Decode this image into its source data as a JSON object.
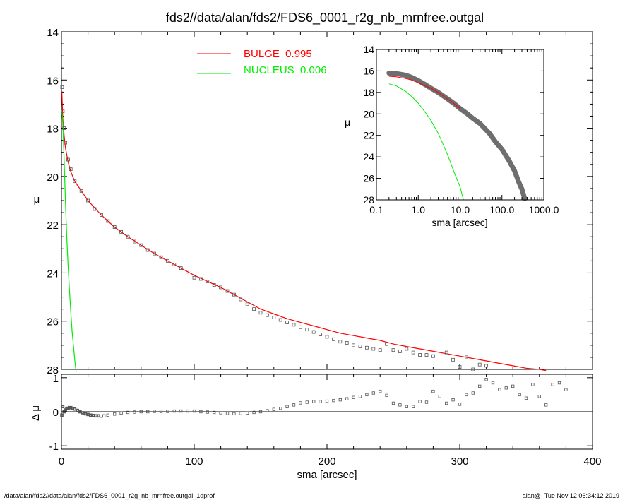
{
  "title": "fds2//data/alan/fds2/FDS6_0001_r2g_nb_mrnfree.outgal",
  "footer_left": "/data/alan/fds2//data/alan/fds2/FDS6_0001_r2g_nb_mrnfree.outgal_1dprof",
  "footer_right": "alan@  Tue Nov 12 06:34:12 2019",
  "colors": {
    "bulge": "#ff0000",
    "nucleus": "#00ee00",
    "data": "#555555",
    "axis": "#000000"
  },
  "chart_data": [
    {
      "id": "main",
      "type": "scatter",
      "xlabel": "",
      "ylabel": "μ",
      "xlim": [
        0,
        400
      ],
      "ylim": [
        28,
        14
      ],
      "yticks": [
        14,
        16,
        18,
        20,
        22,
        24,
        26,
        28
      ],
      "legend": {
        "placement": "top-center",
        "entries": [
          {
            "label": "BULGE  0.995",
            "color": "#ff0000"
          },
          {
            "label": "NUCLEUS  0.006",
            "color": "#00ee00"
          }
        ]
      },
      "series": [
        {
          "name": "BULGE",
          "style": "line",
          "color": "#ff0000",
          "x": [
            0.3,
            1,
            2,
            3,
            5,
            7,
            10,
            15,
            20,
            30,
            40,
            50,
            60,
            70,
            80,
            90,
            100,
            110,
            120,
            130,
            140,
            150,
            160,
            170,
            180,
            190,
            200,
            210,
            220,
            230,
            240,
            250,
            260,
            270,
            280,
            290,
            300,
            310,
            320,
            330,
            340,
            350,
            360,
            365
          ],
          "y": [
            16.5,
            17.6,
            18.3,
            18.8,
            19.4,
            19.8,
            20.2,
            20.6,
            21.0,
            21.6,
            22.1,
            22.5,
            22.85,
            23.2,
            23.5,
            23.8,
            24.1,
            24.35,
            24.6,
            24.9,
            25.2,
            25.5,
            25.7,
            25.9,
            26.05,
            26.2,
            26.35,
            26.5,
            26.6,
            26.7,
            26.8,
            26.95,
            27.05,
            27.15,
            27.25,
            27.35,
            27.45,
            27.55,
            27.65,
            27.75,
            27.85,
            27.95,
            28.0,
            28.05
          ]
        },
        {
          "name": "NUCLEUS",
          "style": "line",
          "color": "#00ee00",
          "x": [
            0.3,
            1,
            2,
            3,
            4,
            5,
            6,
            7,
            8,
            9,
            10,
            11
          ],
          "y": [
            17.3,
            17.8,
            19.3,
            21.0,
            22.5,
            23.7,
            24.7,
            25.6,
            26.4,
            27.0,
            27.6,
            28.1
          ]
        },
        {
          "name": "data",
          "style": "open-square",
          "color": "#555555",
          "x": [
            0.5,
            1,
            2,
            3,
            5,
            7,
            10,
            15,
            20,
            25,
            30,
            35,
            40,
            45,
            50,
            55,
            60,
            65,
            70,
            75,
            80,
            85,
            90,
            95,
            100,
            105,
            110,
            115,
            120,
            125,
            130,
            135,
            140,
            145,
            150,
            155,
            160,
            165,
            170,
            175,
            180,
            185,
            190,
            195,
            200,
            205,
            210,
            215,
            220,
            225,
            230,
            235,
            240,
            245,
            250,
            255,
            260,
            265,
            270,
            275,
            280,
            290,
            295,
            300,
            305,
            310,
            315,
            320
          ],
          "y": [
            16.3,
            17.3,
            18.0,
            18.6,
            19.3,
            19.7,
            20.2,
            20.6,
            21.0,
            21.35,
            21.6,
            21.85,
            22.1,
            22.3,
            22.5,
            22.7,
            22.85,
            23.05,
            23.2,
            23.35,
            23.5,
            23.65,
            23.8,
            23.95,
            24.2,
            24.25,
            24.35,
            24.5,
            24.6,
            24.75,
            24.9,
            25.1,
            25.3,
            25.5,
            25.65,
            25.75,
            25.85,
            25.95,
            26.05,
            26.15,
            26.25,
            26.35,
            26.45,
            26.55,
            26.65,
            26.75,
            26.85,
            26.9,
            27.0,
            27.05,
            27.1,
            27.15,
            27.2,
            26.95,
            27.2,
            27.25,
            27.15,
            27.3,
            27.4,
            27.4,
            27.45,
            27.3,
            27.6,
            27.9,
            27.5,
            28.0,
            27.8,
            27.85
          ]
        }
      ]
    },
    {
      "id": "inset",
      "type": "line",
      "xlabel": "sma [arcsec]",
      "ylabel": "μ",
      "xscale": "log",
      "xlim": [
        0.1,
        1000
      ],
      "xtick_labels": [
        "0.1",
        "1.0",
        "10.0",
        "100.0",
        "1000.0"
      ],
      "ylim": [
        28,
        14
      ],
      "yticks": [
        14,
        16,
        18,
        20,
        22,
        24,
        26,
        28
      ],
      "series": [
        {
          "name": "data",
          "color": "#555555",
          "x": [
            0.2,
            0.3,
            0.5,
            0.7,
            1.0,
            1.5,
            2,
            3,
            5,
            7,
            10,
            15,
            20,
            30,
            50,
            70,
            100,
            150,
            200,
            250,
            300,
            350
          ],
          "y": [
            16.2,
            16.25,
            16.4,
            16.6,
            16.9,
            17.3,
            17.6,
            18.0,
            18.6,
            19.0,
            19.5,
            20.0,
            20.4,
            20.9,
            21.8,
            22.6,
            23.3,
            24.4,
            25.3,
            26.3,
            27.0,
            27.9
          ]
        },
        {
          "name": "BULGE",
          "color": "#ff0000",
          "x": [
            0.2,
            0.3,
            0.5,
            0.7,
            1.0,
            1.5,
            2,
            3,
            5,
            7,
            10
          ],
          "y": [
            16.5,
            16.55,
            16.7,
            16.85,
            17.1,
            17.4,
            17.6,
            18.0,
            18.6,
            19.0,
            19.5
          ]
        },
        {
          "name": "NUCLEUS",
          "color": "#00ee00",
          "x": [
            0.2,
            0.3,
            0.5,
            0.7,
            1.0,
            1.5,
            2,
            3,
            4,
            5,
            6,
            7,
            8,
            10,
            12
          ],
          "y": [
            17.2,
            17.4,
            17.9,
            18.4,
            19.0,
            19.9,
            20.6,
            21.8,
            22.9,
            23.8,
            24.6,
            25.3,
            25.9,
            26.8,
            28.0
          ]
        }
      ]
    },
    {
      "id": "residual",
      "type": "scatter",
      "xlabel": "sma [arcsec]",
      "ylabel": "Δ μ",
      "xlim": [
        0,
        400
      ],
      "xticks": [
        0,
        100,
        200,
        300,
        400
      ],
      "ylim": [
        -1.1,
        1.1
      ],
      "yticks": [
        -1,
        0,
        1
      ],
      "zero_line": true,
      "series": [
        {
          "name": "residual",
          "color": "#555555",
          "x": [
            0.3,
            1,
            2,
            3,
            4,
            5,
            6,
            7,
            8,
            10,
            12,
            14,
            16,
            18,
            20,
            22,
            24,
            26,
            28,
            30,
            32,
            35,
            40,
            45,
            50,
            55,
            60,
            65,
            70,
            75,
            80,
            85,
            90,
            95,
            100,
            105,
            110,
            115,
            120,
            125,
            130,
            135,
            140,
            145,
            150,
            155,
            160,
            165,
            170,
            175,
            180,
            185,
            190,
            195,
            200,
            205,
            210,
            215,
            220,
            225,
            230,
            235,
            240,
            245,
            250,
            255,
            260,
            265,
            270,
            275,
            280,
            285,
            290,
            295,
            300,
            305,
            310,
            315,
            320,
            325,
            330,
            335,
            340,
            345,
            350,
            355,
            360,
            365,
            370,
            375,
            380
          ],
          "y": [
            -0.1,
            0.15,
            0.0,
            0.05,
            0.1,
            0.1,
            0.12,
            0.12,
            0.1,
            0.08,
            0.04,
            0.0,
            -0.03,
            -0.06,
            -0.08,
            -0.1,
            -0.11,
            -0.12,
            -0.12,
            -0.13,
            -0.12,
            -0.1,
            -0.07,
            -0.04,
            -0.02,
            -0.01,
            0.0,
            0.0,
            0.01,
            0.01,
            0.01,
            0.02,
            0.02,
            0.02,
            0.02,
            0.0,
            -0.01,
            -0.02,
            -0.03,
            -0.05,
            -0.06,
            -0.05,
            -0.04,
            -0.02,
            0.0,
            0.03,
            0.07,
            0.1,
            0.15,
            0.2,
            0.26,
            0.28,
            0.3,
            0.3,
            0.31,
            0.33,
            0.35,
            0.38,
            0.42,
            0.45,
            0.5,
            0.55,
            0.6,
            0.48,
            0.25,
            0.2,
            0.15,
            0.15,
            0.3,
            0.28,
            0.6,
            0.45,
            0.25,
            0.35,
            0.22,
            0.5,
            0.55,
            0.75,
            0.95,
            0.85,
            0.65,
            0.7,
            0.75,
            0.5,
            0.4,
            0.8,
            0.45,
            0.2,
            0.8,
            0.85,
            0.65
          ]
        }
      ]
    }
  ]
}
